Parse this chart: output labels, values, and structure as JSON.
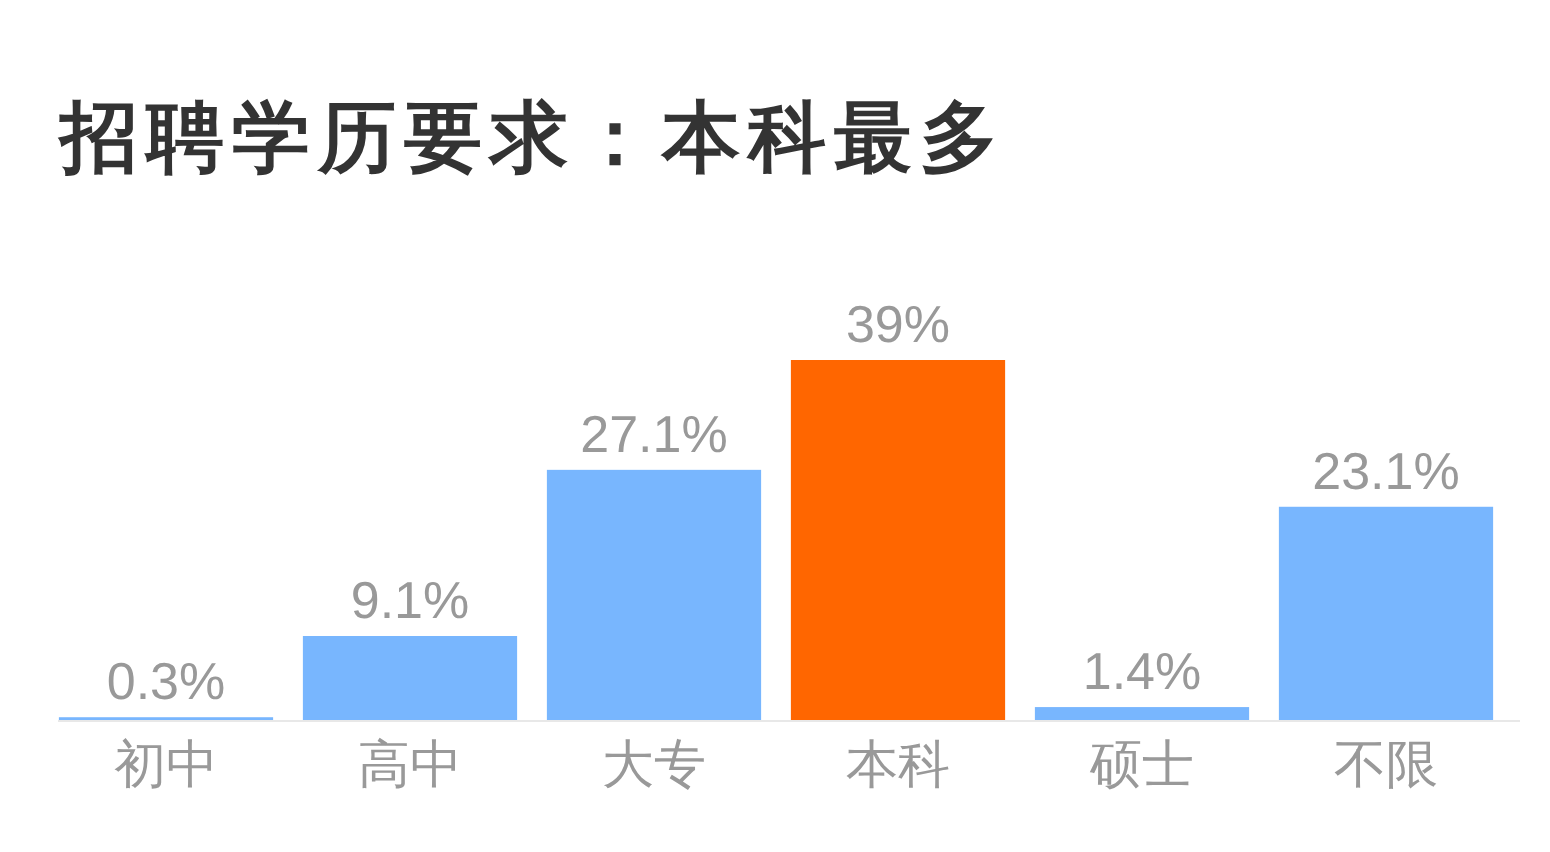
{
  "chart_data": {
    "type": "bar",
    "title": "招聘学历要求：本科最多",
    "categories": [
      "初中",
      "高中",
      "大专",
      "本科",
      "硕士",
      "不限"
    ],
    "values": [
      0.3,
      9.1,
      27.1,
      39,
      1.4,
      23.1
    ],
    "value_labels": [
      "0.3%",
      "9.1%",
      "27.1%",
      "39%",
      "1.4%",
      "23.1%"
    ],
    "colors": [
      "#78b6fe",
      "#78b6fe",
      "#78b6fe",
      "#ff6600",
      "#78b6fe",
      "#78b6fe"
    ]
  }
}
